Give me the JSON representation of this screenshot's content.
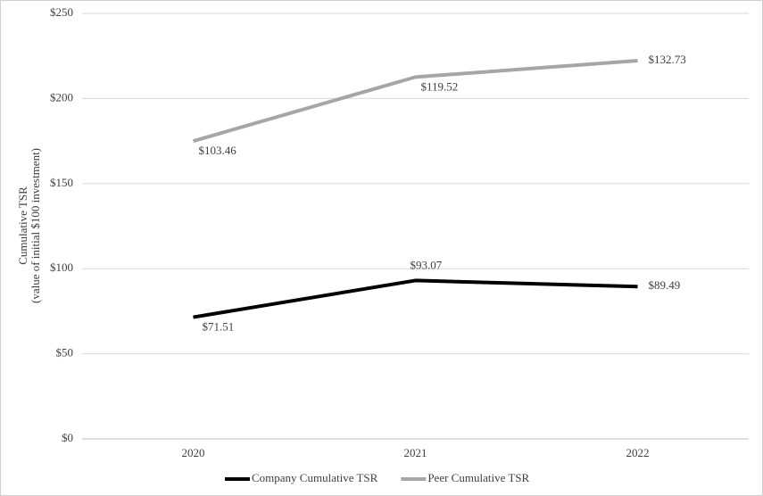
{
  "chart_data": {
    "type": "line",
    "stacked": true,
    "y_axis_title": [
      "Cumulative TSR",
      "(value of initial $100 investment)"
    ],
    "categories": [
      "2020",
      "2021",
      "2022"
    ],
    "series": [
      {
        "name": "Company Cumulative TSR",
        "color": "#000000",
        "values": [
          71.51,
          93.07,
          89.49
        ],
        "value_labels": [
          "$71.51",
          "$93.07",
          "$89.49"
        ]
      },
      {
        "name": "Peer Cumulative TSR",
        "color": "#a6a6a6",
        "values": [
          103.46,
          119.52,
          132.73
        ],
        "value_labels": [
          "$103.46",
          "$119.52",
          "$132.73"
        ]
      }
    ],
    "ylim": [
      0,
      250
    ],
    "yticks": [
      {
        "value": 0,
        "label": "$0"
      },
      {
        "value": 50,
        "label": "$50"
      },
      {
        "value": 100,
        "label": "$100"
      },
      {
        "value": 150,
        "label": "$150"
      },
      {
        "value": 200,
        "label": "$200"
      },
      {
        "value": 250,
        "label": "$250"
      }
    ],
    "grid": true,
    "legend": "bottom"
  }
}
